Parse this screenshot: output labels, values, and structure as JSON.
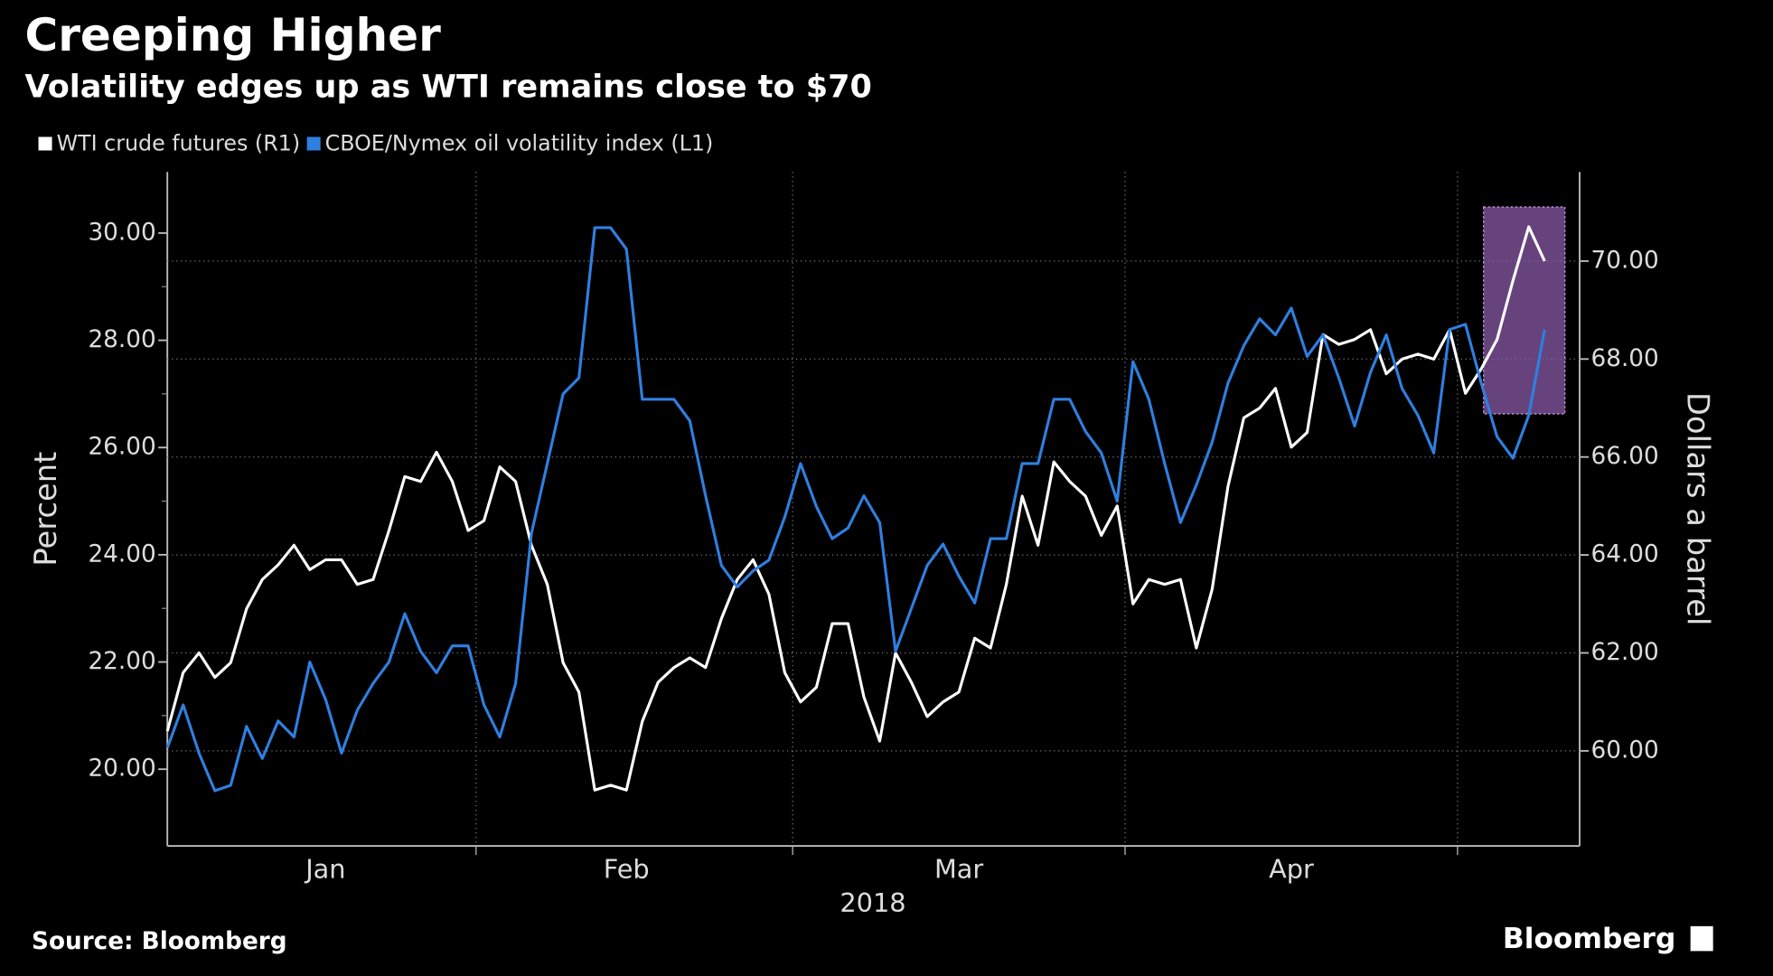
{
  "chart_data": {
    "type": "line",
    "title": "Creeping Higher",
    "subtitle": "Volatility edges up as WTI remains close to $70",
    "ylabel": "Percent",
    "y2label": "Dollars a barrel",
    "xlabel": "2018",
    "source": "Source: Bloomberg",
    "brand": "Bloomberg",
    "categories": [
      null,
      null,
      null,
      null,
      null,
      null,
      null,
      null,
      null,
      null,
      "Jan",
      null,
      null,
      null,
      null,
      null,
      null,
      null,
      null,
      null,
      null,
      null,
      null,
      null,
      null,
      null,
      null,
      null,
      null,
      "Feb",
      null,
      null,
      null,
      null,
      null,
      null,
      null,
      null,
      null,
      null,
      null,
      null,
      null,
      null,
      null,
      null,
      null,
      null,
      null,
      null,
      "Mar",
      null,
      null,
      null,
      null,
      null,
      null,
      null,
      null,
      null,
      null,
      null,
      null,
      null,
      null,
      null,
      null,
      null,
      null,
      null,
      null,
      "Apr",
      null,
      null,
      null,
      null,
      null,
      null,
      null,
      null,
      null,
      null,
      null,
      null,
      null,
      null,
      null,
      null
    ],
    "series": [
      {
        "name": "WTI crude futures (R1)",
        "color": "#ffffff",
        "axis": "y2",
        "values": [
          60.4,
          61.6,
          62.0,
          61.5,
          61.8,
          62.9,
          63.5,
          63.8,
          64.2,
          63.7,
          63.9,
          63.9,
          63.4,
          63.5,
          64.5,
          65.6,
          65.5,
          66.1,
          65.5,
          64.5,
          64.7,
          65.8,
          65.5,
          64.2,
          63.4,
          61.8,
          61.2,
          59.2,
          59.3,
          59.2,
          60.6,
          61.4,
          61.7,
          61.9,
          61.7,
          62.7,
          63.5,
          63.9,
          63.2,
          61.6,
          61.0,
          61.3,
          62.6,
          62.6,
          61.1,
          60.2,
          62.0,
          61.4,
          60.7,
          61.0,
          61.2,
          62.3,
          62.1,
          63.4,
          65.2,
          64.2,
          65.9,
          65.5,
          65.2,
          64.4,
          65.0,
          63.0,
          63.5,
          63.4,
          63.5,
          62.1,
          63.3,
          65.4,
          66.8,
          67.0,
          67.4,
          66.2,
          66.5,
          68.5,
          68.3,
          68.4,
          68.6,
          67.7,
          68.0,
          68.1,
          68.0,
          68.6,
          67.3,
          67.8,
          68.4,
          69.6,
          70.7,
          70.0
        ]
      },
      {
        "name": "CBOE/Nymex oil volatility index (L1)",
        "color": "#2f7fe0",
        "values": [
          20.4,
          21.2,
          20.3,
          19.6,
          19.7,
          20.8,
          20.2,
          20.9,
          20.6,
          22.0,
          21.3,
          20.3,
          21.1,
          21.6,
          22.0,
          22.9,
          22.2,
          21.8,
          22.3,
          22.3,
          21.2,
          20.6,
          21.6,
          24.4,
          25.7,
          27.0,
          27.3,
          30.1,
          30.1,
          29.7,
          26.9,
          26.9,
          26.9,
          26.5,
          25.1,
          23.8,
          23.4,
          23.7,
          23.9,
          24.7,
          25.7,
          24.9,
          24.3,
          24.5,
          25.1,
          24.6,
          22.2,
          23.0,
          23.8,
          24.2,
          23.6,
          23.1,
          24.3,
          24.3,
          25.7,
          25.7,
          26.9,
          26.9,
          26.3,
          25.9,
          25.0,
          27.6,
          26.9,
          25.7,
          24.6,
          25.3,
          26.1,
          27.2,
          27.9,
          28.4,
          28.1,
          28.6,
          27.7,
          28.1,
          27.3,
          26.4,
          27.4,
          28.1,
          27.1,
          26.6,
          25.9,
          28.2,
          28.3,
          27.2,
          26.2,
          25.8,
          26.6,
          28.2
        ]
      }
    ],
    "ylim": [
      18.57,
      31.14
    ],
    "yticks": [
      {
        "value": 20,
        "label": "20.00"
      },
      {
        "value": 22,
        "label": "22.00"
      },
      {
        "value": 24,
        "label": "24.00"
      },
      {
        "value": 26,
        "label": "26.00"
      },
      {
        "value": 28,
        "label": "28.00"
      },
      {
        "value": 30,
        "label": "30.00"
      }
    ],
    "y2lim": [
      58.06,
      71.82
    ],
    "y2ticks": [
      {
        "value": 60,
        "label": "60.00"
      },
      {
        "value": 62,
        "label": "62.00"
      },
      {
        "value": 64,
        "label": "64.00"
      },
      {
        "value": 66,
        "label": "66.00"
      },
      {
        "value": 68,
        "label": "68.00"
      },
      {
        "value": 70,
        "label": "70.00"
      }
    ],
    "grid": true
  }
}
